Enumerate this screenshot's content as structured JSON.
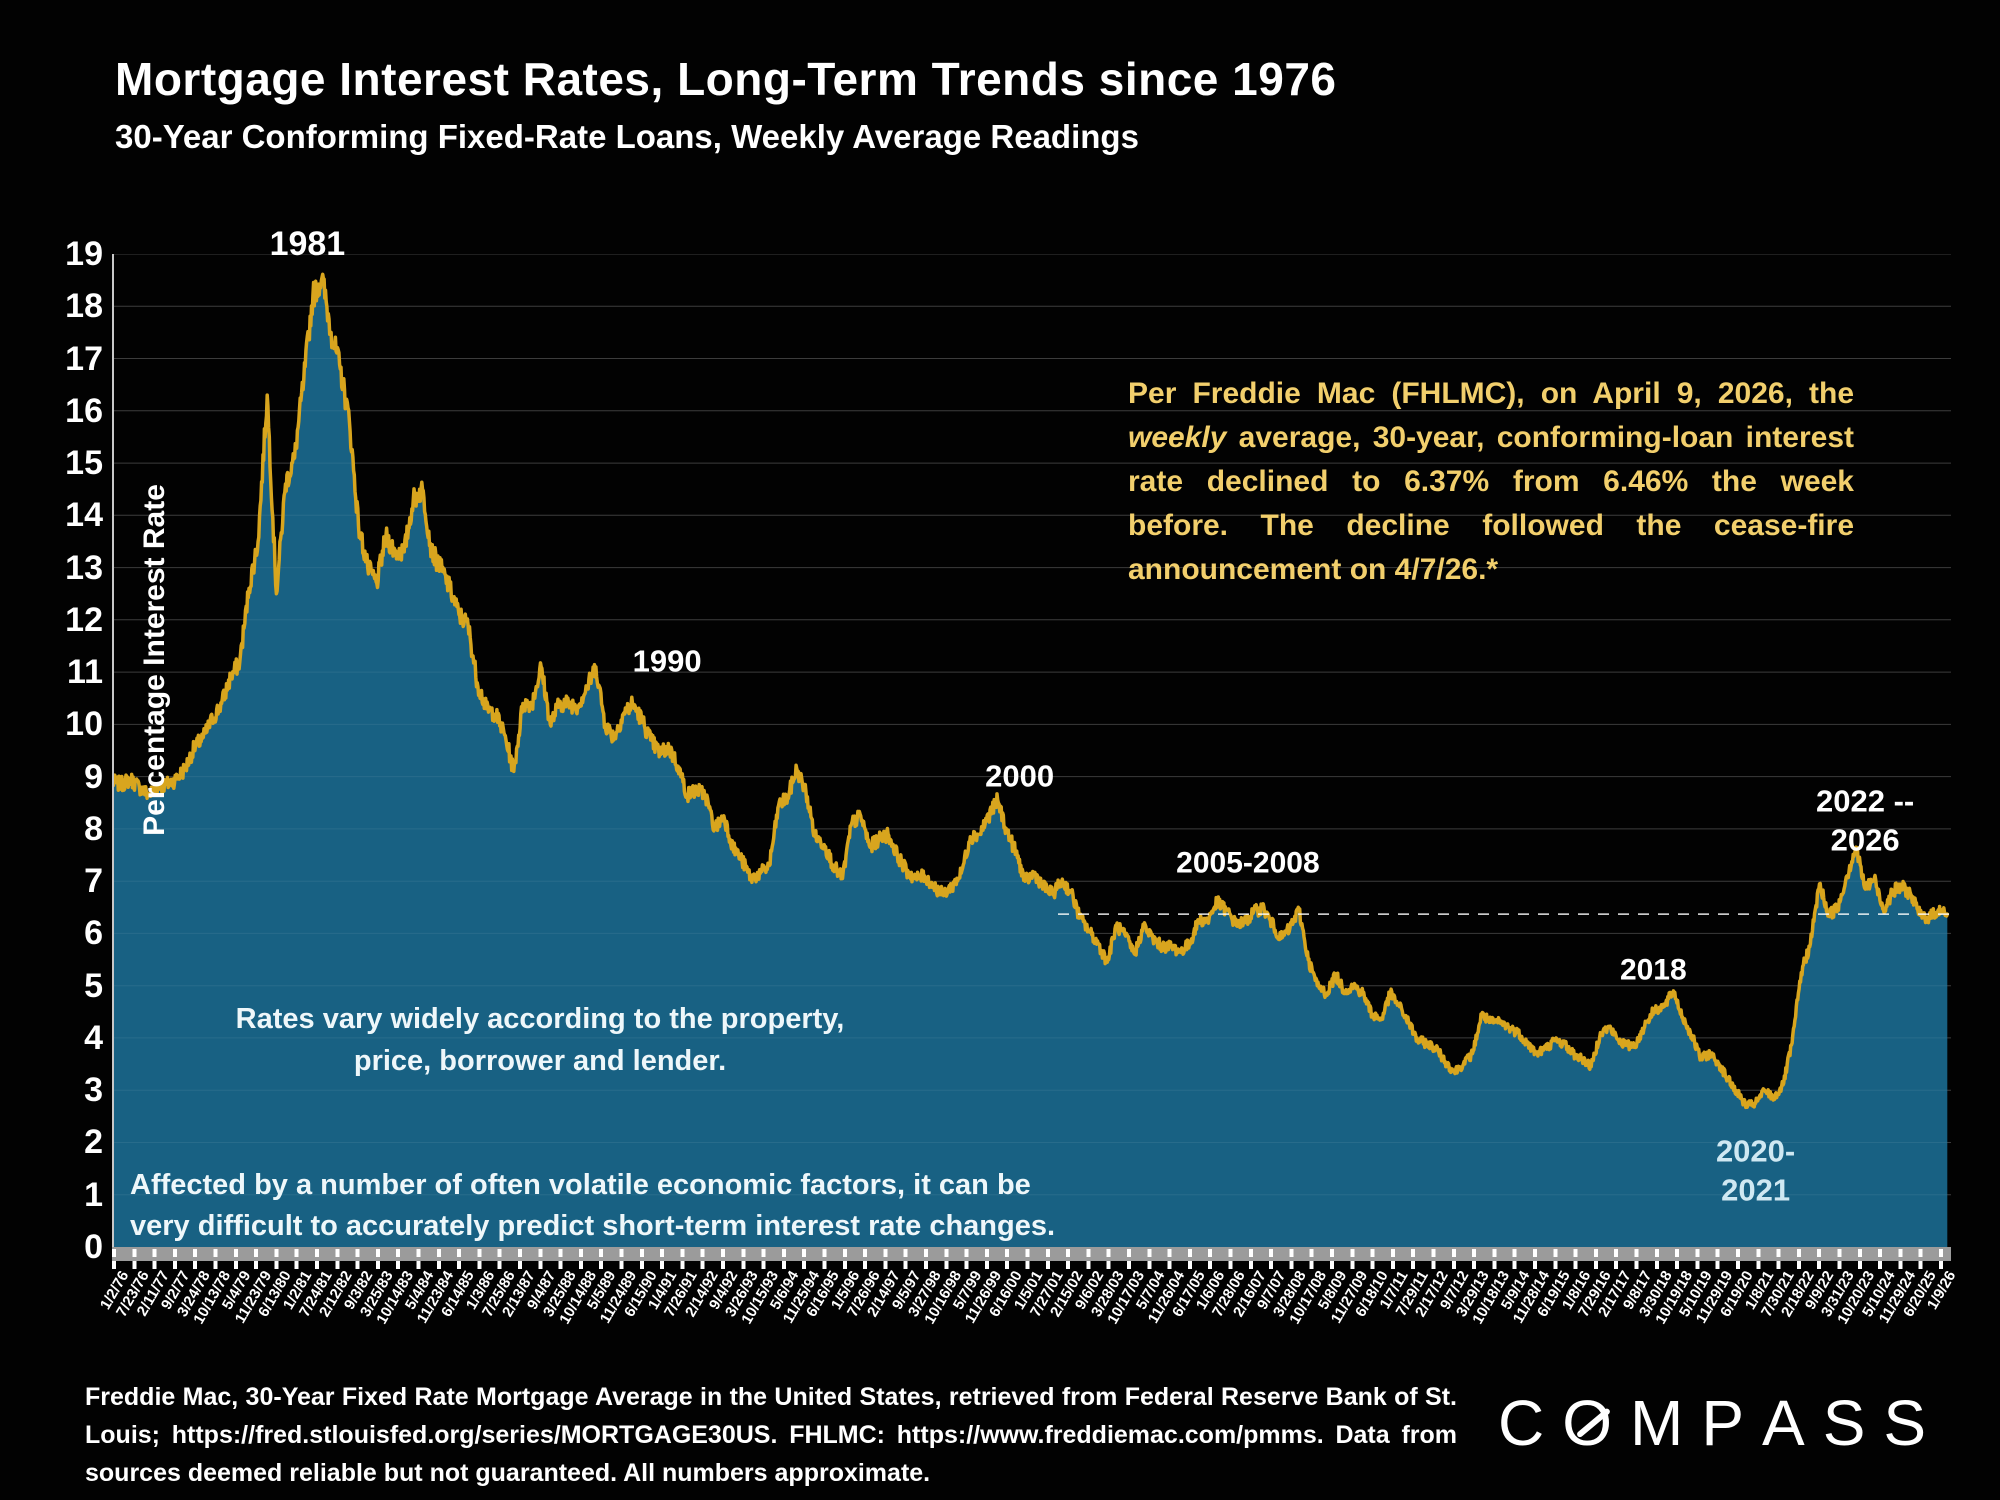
{
  "header": {
    "title": "Mortgage Interest Rates, Long-Term Trends since 1976",
    "subtitle": "30-Year Conforming Fixed-Rate Loans, Weekly Average Readings"
  },
  "chart_data": {
    "type": "area",
    "title": "Mortgage Interest Rates, Long-Term Trends since 1976",
    "xlabel": "",
    "ylabel": "Percentage Interest Rate",
    "ylim": [
      0,
      19
    ],
    "x_range_years": [
      1976.0,
      2026.35
    ],
    "x_start_year": 1976.0,
    "x_step_years": 0.25,
    "grid": true,
    "legend": "none",
    "y_tick_labels": [
      "0",
      "1",
      "2",
      "3",
      "4",
      "5",
      "6",
      "7",
      "8",
      "9",
      "10",
      "11",
      "12",
      "13",
      "14",
      "15",
      "16",
      "17",
      "18",
      "19"
    ],
    "values": [
      8.9,
      8.85,
      8.95,
      8.8,
      8.65,
      8.8,
      8.85,
      8.95,
      9.15,
      9.55,
      9.75,
      10.1,
      10.4,
      10.9,
      11.2,
      12.6,
      13.5,
      16.3,
      12.5,
      14.6,
      15.1,
      16.6,
      18.2,
      18.55,
      17.5,
      16.8,
      15.8,
      13.8,
      13.0,
      12.7,
      13.6,
      13.3,
      13.3,
      14.3,
      14.5,
      13.3,
      13.0,
      12.6,
      12.1,
      11.9,
      10.8,
      10.3,
      10.2,
      9.8,
      9.1,
      10.4,
      10.4,
      11.1,
      10.0,
      10.4,
      10.4,
      10.35,
      10.7,
      11.1,
      10.0,
      9.75,
      10.2,
      10.4,
      10.1,
      9.7,
      9.45,
      9.55,
      9.2,
      8.65,
      8.75,
      8.65,
      8.0,
      8.25,
      7.65,
      7.4,
      7.05,
      7.15,
      7.3,
      8.45,
      8.6,
      9.15,
      8.7,
      7.85,
      7.7,
      7.3,
      7.05,
      8.1,
      8.25,
      7.65,
      7.8,
      7.9,
      7.5,
      7.2,
      7.05,
      7.1,
      6.9,
      6.75,
      6.9,
      7.15,
      7.85,
      7.9,
      8.25,
      8.55,
      7.95,
      7.55,
      7.0,
      7.15,
      6.9,
      6.75,
      7.0,
      6.8,
      6.3,
      6.05,
      5.8,
      5.45,
      6.15,
      5.95,
      5.6,
      6.15,
      5.9,
      5.75,
      5.75,
      5.65,
      5.8,
      6.25,
      6.25,
      6.6,
      6.45,
      6.2,
      6.2,
      6.4,
      6.5,
      6.2,
      5.9,
      6.1,
      6.45,
      5.5,
      5.0,
      4.85,
      5.2,
      4.9,
      5.0,
      4.85,
      4.45,
      4.35,
      4.85,
      4.6,
      4.3,
      3.95,
      3.9,
      3.8,
      3.55,
      3.35,
      3.5,
      3.7,
      4.45,
      4.3,
      4.3,
      4.2,
      4.1,
      3.9,
      3.7,
      3.8,
      3.95,
      3.9,
      3.7,
      3.6,
      3.45,
      4.1,
      4.2,
      3.95,
      3.85,
      3.9,
      4.3,
      4.55,
      4.6,
      4.9,
      4.4,
      4.05,
      3.6,
      3.7,
      3.5,
      3.2,
      2.95,
      2.7,
      2.75,
      3.0,
      2.85,
      3.1,
      3.9,
      5.25,
      5.8,
      6.95,
      6.35,
      6.5,
      7.1,
      7.65,
      6.85,
      7.05,
      6.45,
      6.8,
      6.9,
      6.75,
      6.35,
      6.3,
      6.45,
      6.37
    ],
    "x_tick_labels": [
      "1/2/76",
      "7/23/76",
      "2/11/77",
      "9/2/77",
      "3/24/78",
      "10/13/78",
      "5/4/79",
      "11/23/79",
      "6/13/80",
      "1/2/81",
      "7/24/81",
      "2/12/82",
      "9/3/82",
      "3/25/83",
      "10/14/83",
      "5/4/84",
      "11/23/84",
      "6/14/85",
      "1/3/86",
      "7/25/86",
      "2/13/87",
      "9/4/87",
      "3/25/88",
      "10/14/88",
      "5/5/89",
      "11/24/89",
      "6/15/90",
      "1/4/91",
      "7/26/91",
      "2/14/92",
      "9/4/92",
      "3/26/93",
      "10/15/93",
      "5/6/94",
      "11/25/94",
      "6/16/95",
      "1/5/96",
      "7/26/96",
      "2/14/97",
      "9/5/97",
      "3/27/98",
      "10/16/98",
      "5/7/99",
      "11/26/99",
      "6/16/00",
      "1/5/01",
      "7/27/01",
      "2/15/02",
      "9/6/02",
      "3/28/03",
      "10/17/03",
      "5/7/04",
      "11/26/04",
      "6/17/05",
      "1/6/06",
      "7/28/06",
      "2/16/07",
      "9/7/07",
      "3/28/08",
      "10/17/08",
      "5/8/09",
      "11/27/09",
      "6/18/10",
      "1/7/11",
      "7/29/11",
      "2/17/12",
      "9/7/12",
      "3/29/13",
      "10/18/13",
      "5/9/14",
      "11/28/14",
      "6/19/15",
      "1/8/16",
      "7/29/16",
      "2/17/17",
      "9/8/17",
      "3/30/18",
      "10/19/18",
      "5/10/19",
      "11/29/19",
      "6/19/20",
      "1/8/21",
      "7/30/21",
      "2/18/22",
      "9/9/22",
      "3/31/23",
      "10/20/23",
      "5/10/24",
      "11/29/24",
      "6/20/25",
      "1/9/26"
    ],
    "annotations": [
      {
        "label": "1981",
        "x_year": 1981.35,
        "value": 19.2,
        "size": 34,
        "color": "#ffffff"
      },
      {
        "label": "1990",
        "x_year": 1991.2,
        "value": 11.2,
        "size": 31,
        "color": "#ffffff"
      },
      {
        "label": "2000",
        "x_year": 2000.85,
        "value": 9.0,
        "size": 31,
        "color": "#ffffff"
      },
      {
        "label": "2005-2008",
        "x_year": 2007.1,
        "value": 7.35,
        "size": 30,
        "color": "#ffffff"
      },
      {
        "label": "2018",
        "x_year": 2018.2,
        "value": 5.3,
        "size": 30,
        "color": "#ffffff"
      },
      {
        "label": "2020-\n2021",
        "x_year": 2021.0,
        "value": 1.45,
        "size": 31,
        "color": "#cfe8f2"
      },
      {
        "label": "2022 -- 2026",
        "x_year": 2024.0,
        "value": 8.15,
        "size": 31,
        "color": "#ffffff"
      }
    ],
    "reference_line": {
      "value": 6.37,
      "from_year": 2001.9,
      "style": "dashed-white"
    },
    "colors": {
      "area_fill": "#186183",
      "line": "#D8A51E",
      "grid_dark": "#2e2e2e",
      "grid_on_fill": "rgba(255,255,255,0.07)",
      "axis_line": "#c8c8c8",
      "axis_band": "#9b9b9b",
      "note_yellow": "#F2CF6C"
    },
    "jitter_hint": 0.011
  },
  "notes": {
    "freddie_note": {
      "part1": "Per Freddie Mac (FHLMC), on April 9, 2026, the ",
      "part2_italic": "weekly",
      "part3": " average, 30-year, conforming-loan interest rate declined to 6.37% from 6.46% the week before. The decline followed the cease-fire announcement on 4/7/26.*"
    },
    "rates_vary_line1": "Rates vary widely according to the property,",
    "rates_vary_line2": "price, borrower and lender.",
    "affected_line1": "Affected by a number of often volatile economic factors, it can be",
    "affected_line2": "very difficult to accurately predict short-term interest rate changes."
  },
  "footer": {
    "source_text": "Freddie Mac, 30-Year Fixed Rate Mortgage Average in the United States, retrieved from Federal Reserve Bank of St. Louis; https://fred.stlouisfed.org/series/MORTGAGE30US. FHLMC: https://www.freddiemac.com/pmms. Data from sources deemed reliable but not guaranteed. All numbers approximate.",
    "logo_text": "COMPASS"
  }
}
